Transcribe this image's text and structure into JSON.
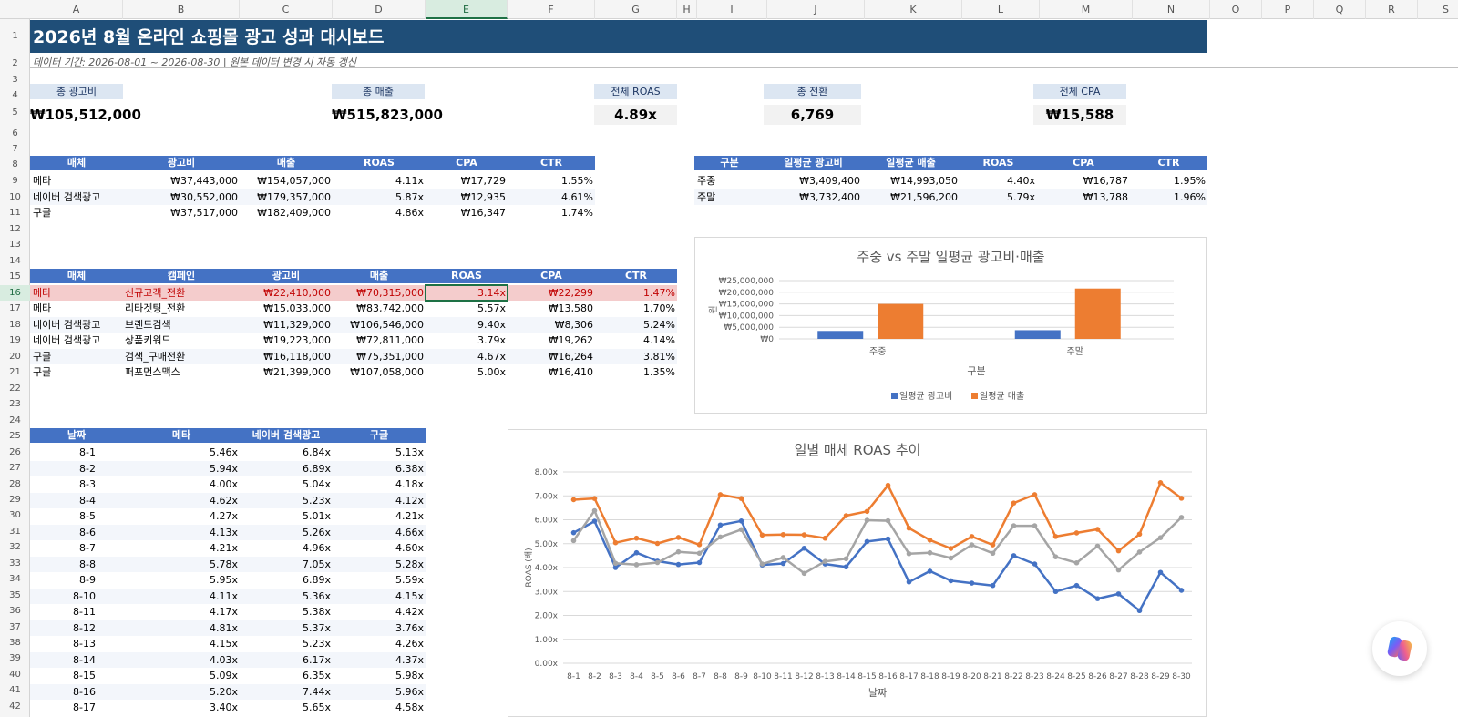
{
  "columns": [
    "A",
    "B",
    "C",
    "D",
    "E",
    "F",
    "G",
    "H",
    "I",
    "J",
    "K",
    "L",
    "M",
    "N",
    "O",
    "P",
    "Q",
    "R",
    "S"
  ],
  "rows": [
    "1",
    "2",
    "3",
    "4",
    "5",
    "6",
    "7",
    "8",
    "9",
    "10",
    "11",
    "12",
    "13",
    "14",
    "15",
    "16",
    "17",
    "18",
    "19",
    "20",
    "21",
    "22",
    "23",
    "24",
    "25",
    "26",
    "27",
    "28",
    "29",
    "30",
    "31",
    "32",
    "33",
    "34",
    "35",
    "36",
    "37",
    "38",
    "39",
    "40",
    "41",
    "42"
  ],
  "selected_column": "E",
  "selected_row": "16",
  "title": "2026년 8월 온라인 쇼핑몰 광고 성과 대시보드",
  "subtitle": "데이터 기간: 2026-08-01 ~ 2026-08-30  |  원본 데이터 변경 시 자동 갱신",
  "kpis": [
    {
      "label": "총 광고비",
      "value": "₩105,512,000"
    },
    {
      "label": "총 매출",
      "value": "₩515,823,000"
    },
    {
      "label": "전체 ROAS",
      "value": "4.89x"
    },
    {
      "label": "총 전환",
      "value": "6,769"
    },
    {
      "label": "전체 CPA",
      "value": "₩15,588"
    }
  ],
  "media_table": {
    "headers": [
      "매체",
      "광고비",
      "매출",
      "ROAS",
      "CPA",
      "CTR"
    ],
    "rows": [
      [
        "메타",
        "₩37,443,000",
        "₩154,057,000",
        "4.11x",
        "₩17,729",
        "1.55%"
      ],
      [
        "네이버 검색광고",
        "₩30,552,000",
        "₩179,357,000",
        "5.87x",
        "₩12,935",
        "4.61%"
      ],
      [
        "구글",
        "₩37,517,000",
        "₩182,409,000",
        "4.86x",
        "₩16,347",
        "1.74%"
      ]
    ]
  },
  "week_table": {
    "headers": [
      "구분",
      "일평균 광고비",
      "일평균 매출",
      "ROAS",
      "CPA",
      "CTR"
    ],
    "rows": [
      [
        "주중",
        "₩3,409,400",
        "₩14,993,050",
        "4.40x",
        "₩16,787",
        "1.95%"
      ],
      [
        "주말",
        "₩3,732,400",
        "₩21,596,200",
        "5.79x",
        "₩13,788",
        "1.96%"
      ]
    ]
  },
  "campaign_table": {
    "headers": [
      "매체",
      "캠페인",
      "광고비",
      "매출",
      "ROAS",
      "CPA",
      "CTR"
    ],
    "rows": [
      [
        "메타",
        "신규고객_전환",
        "₩22,410,000",
        "₩70,315,000",
        "3.14x",
        "₩22,299",
        "1.47%"
      ],
      [
        "메타",
        "리타겟팅_전환",
        "₩15,033,000",
        "₩83,742,000",
        "5.57x",
        "₩13,580",
        "1.70%"
      ],
      [
        "네이버 검색광고",
        "브랜드검색",
        "₩11,329,000",
        "₩106,546,000",
        "9.40x",
        "₩8,306",
        "5.24%"
      ],
      [
        "네이버 검색광고",
        "상품키워드",
        "₩19,223,000",
        "₩72,811,000",
        "3.79x",
        "₩19,262",
        "4.14%"
      ],
      [
        "구글",
        "검색_구매전환",
        "₩16,118,000",
        "₩75,351,000",
        "4.67x",
        "₩16,264",
        "3.81%"
      ],
      [
        "구글",
        "퍼포먼스맥스",
        "₩21,399,000",
        "₩107,058,000",
        "5.00x",
        "₩16,410",
        "1.35%"
      ]
    ]
  },
  "daily_table": {
    "headers": [
      "날짜",
      "메타",
      "네이버 검색광고",
      "구글"
    ],
    "rows": [
      [
        "8-1",
        "5.46x",
        "6.84x",
        "5.13x"
      ],
      [
        "8-2",
        "5.94x",
        "6.89x",
        "6.38x"
      ],
      [
        "8-3",
        "4.00x",
        "5.04x",
        "4.18x"
      ],
      [
        "8-4",
        "4.62x",
        "5.23x",
        "4.12x"
      ],
      [
        "8-5",
        "4.27x",
        "5.01x",
        "4.21x"
      ],
      [
        "8-6",
        "4.13x",
        "5.26x",
        "4.66x"
      ],
      [
        "8-7",
        "4.21x",
        "4.96x",
        "4.60x"
      ],
      [
        "8-8",
        "5.78x",
        "7.05x",
        "5.28x"
      ],
      [
        "8-9",
        "5.95x",
        "6.89x",
        "5.59x"
      ],
      [
        "8-10",
        "4.11x",
        "5.36x",
        "4.15x"
      ],
      [
        "8-11",
        "4.17x",
        "5.38x",
        "4.42x"
      ],
      [
        "8-12",
        "4.81x",
        "5.37x",
        "3.76x"
      ],
      [
        "8-13",
        "4.15x",
        "5.23x",
        "4.26x"
      ],
      [
        "8-14",
        "4.03x",
        "6.17x",
        "4.37x"
      ],
      [
        "8-15",
        "5.09x",
        "6.35x",
        "5.98x"
      ],
      [
        "8-16",
        "5.20x",
        "7.44x",
        "5.96x"
      ],
      [
        "8-17",
        "3.40x",
        "5.65x",
        "4.58x"
      ]
    ]
  },
  "chart_data": [
    {
      "type": "bar",
      "title": "주중 vs 주말 일평균 광고비·매출",
      "xlabel": "구분",
      "ylabel": "원",
      "categories": [
        "주중",
        "주말"
      ],
      "y_ticks": [
        "₩0",
        "₩5,000,000",
        "₩10,000,000",
        "₩15,000,000",
        "₩20,000,000",
        "₩25,000,000"
      ],
      "ylim": [
        0,
        25000000
      ],
      "legend_position": "bottom",
      "series": [
        {
          "name": "일평균 광고비",
          "values": [
            3409400,
            3732400
          ],
          "color": "#4472c4"
        },
        {
          "name": "일평균 매출",
          "values": [
            14993050,
            21596200
          ],
          "color": "#ed7d31"
        }
      ]
    },
    {
      "type": "line",
      "title": "일별 매체 ROAS 추이",
      "xlabel": "날짜",
      "ylabel": "ROAS (배)",
      "ylim": [
        0,
        8
      ],
      "y_ticks": [
        "0.00x",
        "1.00x",
        "2.00x",
        "3.00x",
        "4.00x",
        "5.00x",
        "6.00x",
        "7.00x",
        "8.00x"
      ],
      "x": [
        "8-1",
        "8-2",
        "8-3",
        "8-4",
        "8-5",
        "8-6",
        "8-7",
        "8-8",
        "8-9",
        "8-10",
        "8-11",
        "8-12",
        "8-13",
        "8-14",
        "8-15",
        "8-16",
        "8-17",
        "8-18",
        "8-19",
        "8-20",
        "8-21",
        "8-22",
        "8-23",
        "8-24",
        "8-25",
        "8-26",
        "8-27",
        "8-28",
        "8-29",
        "8-30"
      ],
      "series": [
        {
          "values": [
            5.46,
            5.94,
            4.0,
            4.62,
            4.27,
            4.13,
            4.21,
            5.78,
            5.95,
            4.11,
            4.17,
            4.81,
            4.15,
            4.03,
            5.09,
            5.2,
            3.4,
            3.85,
            3.45,
            3.35,
            3.25,
            4.5,
            4.15,
            3.0,
            3.25,
            2.7,
            2.9,
            2.2,
            3.8,
            3.05
          ],
          "color": "#4472c4"
        },
        {
          "values": [
            6.84,
            6.89,
            5.04,
            5.23,
            5.01,
            5.26,
            4.96,
            7.05,
            6.89,
            5.36,
            5.38,
            5.37,
            5.23,
            6.17,
            6.35,
            7.44,
            5.65,
            5.15,
            4.8,
            5.3,
            4.95,
            6.7,
            7.05,
            5.3,
            5.45,
            5.6,
            4.7,
            5.4,
            7.55,
            6.9
          ],
          "color": "#ed7d31"
        },
        {
          "values": [
            5.13,
            6.38,
            4.18,
            4.12,
            4.21,
            4.66,
            4.6,
            5.28,
            5.59,
            4.15,
            4.42,
            3.76,
            4.26,
            4.37,
            5.98,
            5.96,
            4.58,
            4.62,
            4.4,
            4.95,
            4.6,
            5.75,
            5.75,
            4.45,
            4.2,
            4.9,
            3.9,
            4.65,
            5.25,
            6.1
          ],
          "color": "#a5a5a5"
        }
      ]
    }
  ]
}
